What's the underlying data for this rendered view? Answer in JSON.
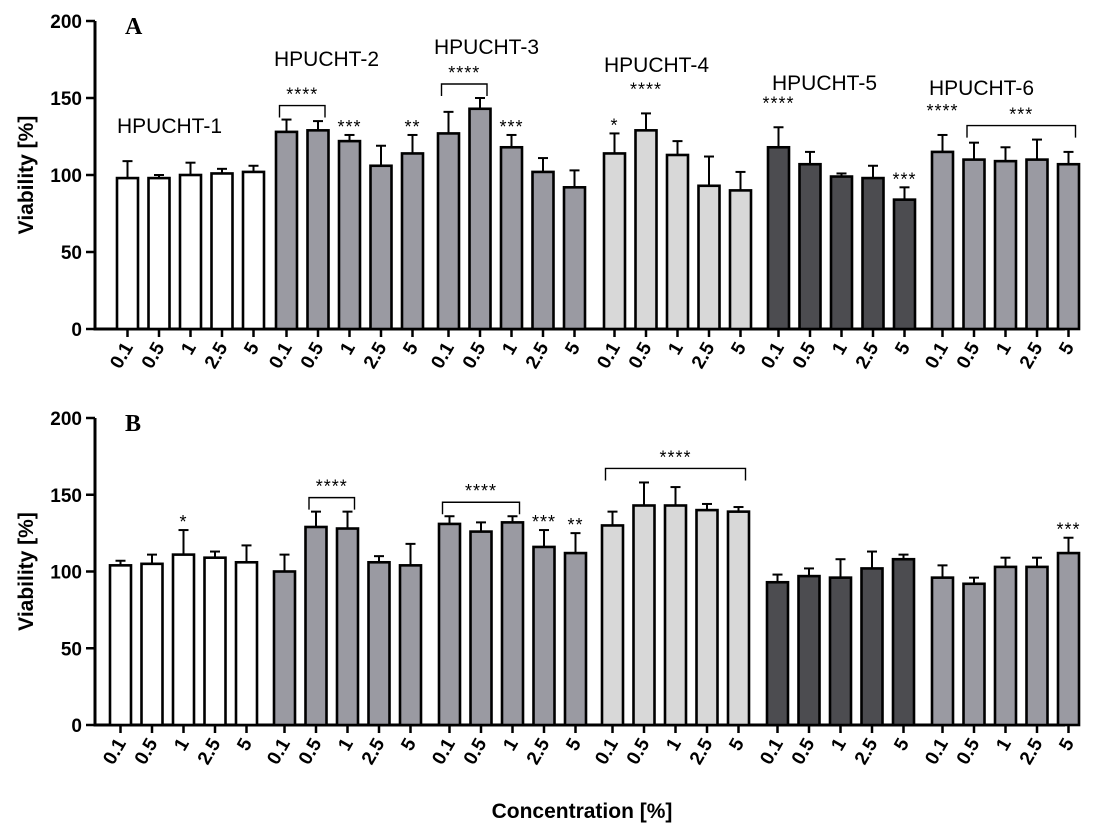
{
  "chart_data": [
    {
      "panel": "A",
      "type": "bar",
      "ylabel": "Viability [%]",
      "ylim": [
        0,
        200
      ],
      "yticks": [
        "0",
        "50",
        "100",
        "150",
        "200"
      ],
      "categories": [
        "0.1",
        "0.5",
        "1",
        "2.5",
        "5"
      ],
      "groups": [
        {
          "name": "HPUCHT-1",
          "color": "#ffffff",
          "values": [
            98,
            98,
            100,
            101,
            102
          ],
          "errors": [
            11,
            2,
            8,
            3,
            4
          ],
          "stars": [
            "",
            "",
            "",
            "",
            ""
          ]
        },
        {
          "name": "HPUCHT-2",
          "color": "#9a9aa2",
          "values": [
            128,
            129,
            122,
            106,
            114
          ],
          "errors": [
            8,
            6,
            4,
            13,
            12
          ],
          "stars": [
            "",
            "",
            "***",
            "",
            "**"
          ]
        },
        {
          "name": "HPUCHT-3",
          "color": "#9a9aa2",
          "values": [
            127,
            143,
            118,
            102,
            92
          ],
          "errors": [
            14,
            7,
            8,
            9,
            11
          ],
          "stars": [
            "",
            "",
            "***",
            "",
            ""
          ]
        },
        {
          "name": "HPUCHT-4",
          "color": "#d8d8d8",
          "values": [
            114,
            129,
            113,
            93,
            90
          ],
          "errors": [
            13,
            11,
            9,
            19,
            12
          ],
          "stars": [
            "*",
            "",
            "",
            "",
            ""
          ]
        },
        {
          "name": "HPUCHT-5",
          "color": "#4c4c50",
          "values": [
            118,
            107,
            99,
            98,
            84
          ],
          "errors": [
            13,
            8,
            2,
            8,
            8
          ],
          "stars": [
            "",
            "",
            "",
            "",
            "***"
          ]
        },
        {
          "name": "HPUCHT-6",
          "color": "#9a9aa2",
          "values": [
            115,
            110,
            109,
            110,
            107
          ],
          "errors": [
            11,
            11,
            9,
            13,
            8
          ],
          "stars": [
            "",
            "",
            "",
            "",
            ""
          ]
        }
      ],
      "brackets": [
        {
          "group": 1,
          "from": 0,
          "to": 1,
          "label": "****"
        },
        {
          "group": 2,
          "from": 0,
          "to": 1,
          "label": "****"
        },
        {
          "group": 3,
          "from": 1,
          "to": 1,
          "label": "****",
          "plain": true
        },
        {
          "group": 4,
          "from": 0,
          "to": 0,
          "label": "****",
          "plain": true
        },
        {
          "group": 5,
          "from": 0,
          "to": 0,
          "label": "****",
          "plain": true
        },
        {
          "group": 5,
          "from": 1,
          "to": 4,
          "label": "***"
        }
      ]
    },
    {
      "panel": "B",
      "type": "bar",
      "ylabel": "Viability [%]",
      "xlabel": "Concentration [%]",
      "ylim": [
        0,
        200
      ],
      "yticks": [
        "0",
        "50",
        "100",
        "150",
        "200"
      ],
      "categories": [
        "0.1",
        "0.5",
        "1",
        "2.5",
        "5"
      ],
      "groups": [
        {
          "name": "HPUCHT-1",
          "color": "#ffffff",
          "values": [
            104,
            105,
            111,
            109,
            106
          ],
          "errors": [
            3,
            6,
            16,
            4,
            11
          ],
          "stars": [
            "",
            "",
            "*",
            "",
            ""
          ]
        },
        {
          "name": "HPUCHT-2",
          "color": "#9a9aa2",
          "values": [
            100,
            129,
            128,
            106,
            104
          ],
          "errors": [
            11,
            10,
            11,
            4,
            14
          ],
          "stars": [
            "",
            "",
            "",
            "",
            ""
          ]
        },
        {
          "name": "HPUCHT-3",
          "color": "#9a9aa2",
          "values": [
            131,
            126,
            132,
            116,
            112
          ],
          "errors": [
            5,
            6,
            4,
            11,
            13
          ],
          "stars": [
            "",
            "",
            "",
            "***",
            "**"
          ]
        },
        {
          "name": "HPUCHT-4",
          "color": "#d8d8d8",
          "values": [
            130,
            143,
            143,
            140,
            139
          ],
          "errors": [
            9,
            15,
            12,
            4,
            3
          ],
          "stars": [
            "",
            "",
            "",
            "",
            ""
          ]
        },
        {
          "name": "HPUCHT-5",
          "color": "#4c4c50",
          "values": [
            93,
            97,
            96,
            102,
            108
          ],
          "errors": [
            5,
            5,
            12,
            11,
            3
          ],
          "stars": [
            "",
            "",
            "",
            "",
            ""
          ]
        },
        {
          "name": "HPUCHT-6",
          "color": "#9a9aa2",
          "values": [
            96,
            92,
            103,
            103,
            112
          ],
          "errors": [
            8,
            4,
            6,
            6,
            10
          ],
          "stars": [
            "",
            "",
            "",
            "",
            "***"
          ]
        }
      ],
      "brackets": [
        {
          "group": 1,
          "from": 1,
          "to": 2,
          "label": "****"
        },
        {
          "group": 2,
          "from": 0,
          "to": 2,
          "label": "****"
        },
        {
          "group": 3,
          "from": 0,
          "to": 4,
          "label": "****"
        }
      ]
    }
  ]
}
